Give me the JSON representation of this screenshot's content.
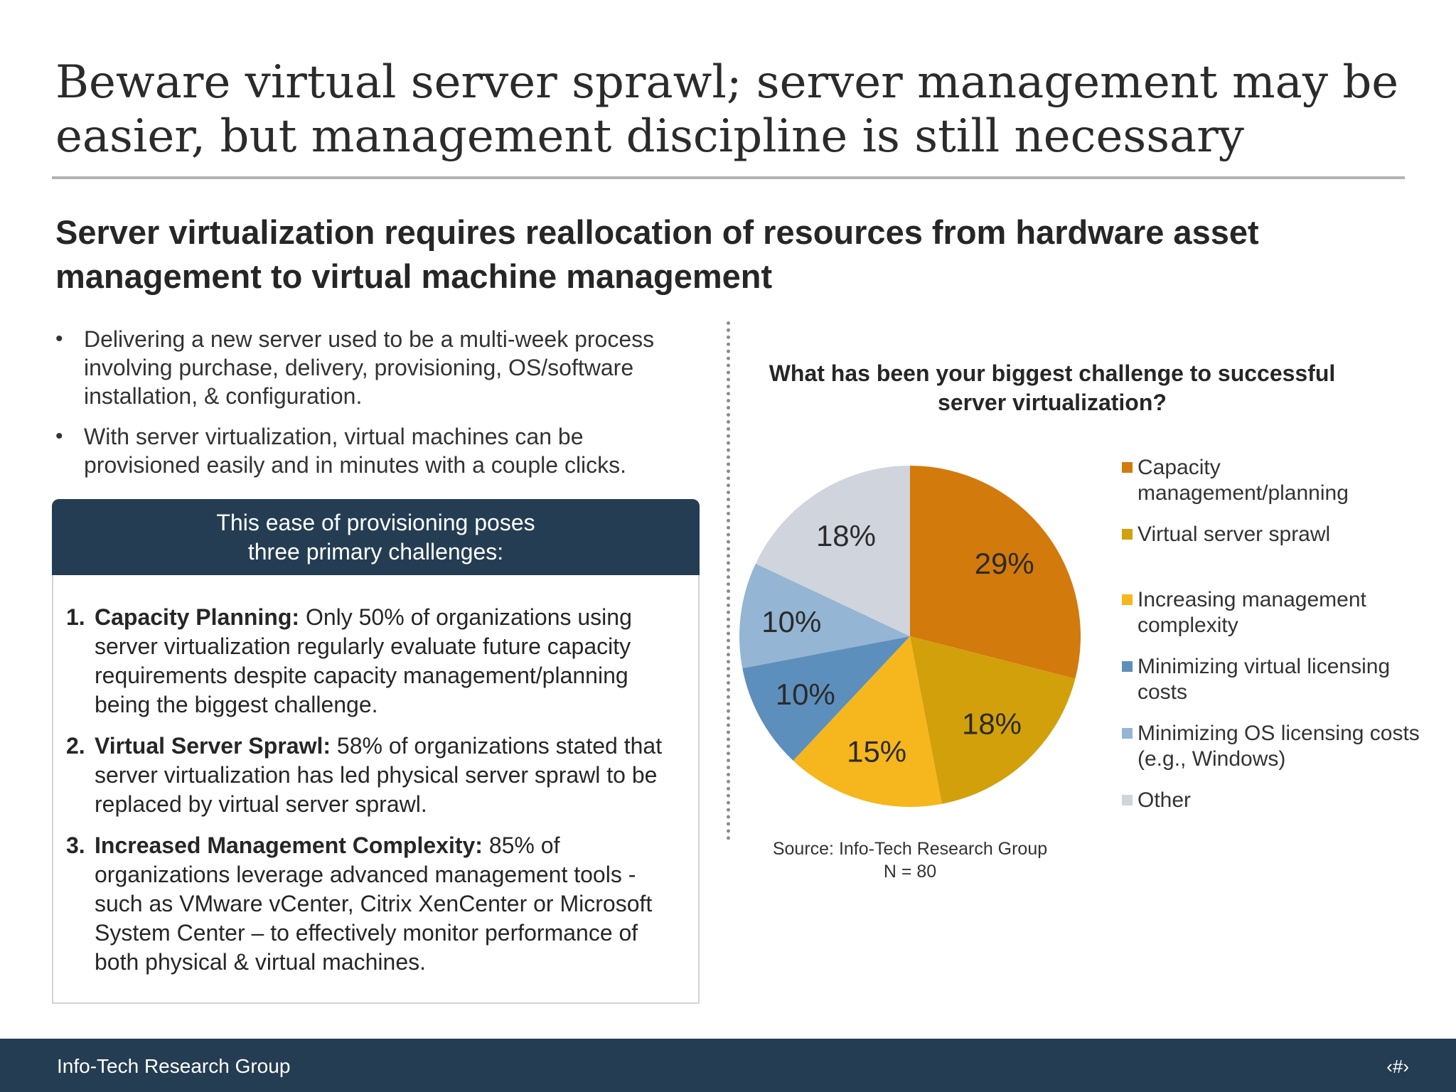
{
  "slide": {
    "title": "Beware virtual server sprawl; server management may be easier, but management discipline is still necessary",
    "subtitle": "Server virtualization requires reallocation of resources from hardware asset management to virtual machine management"
  },
  "bullets": [
    "Delivering a new server used to be a multi-week process involving purchase, delivery, provisioning, OS/software installation, & configuration.",
    "With server virtualization, virtual machines can be provisioned easily and in minutes with a couple clicks."
  ],
  "callout": {
    "header_line1": "This ease of provisioning poses",
    "header_line2": "three primary challenges:",
    "items": [
      {
        "num": "1.",
        "lead": "Capacity Planning:",
        "text": " Only 50% of organizations using server virtualization regularly evaluate future capacity requirements despite capacity management/planning being the biggest challenge."
      },
      {
        "num": "2.",
        "lead": "Virtual Server Sprawl:",
        "text": " 58% of organizations stated that server virtualization has led physical server sprawl to be replaced by virtual server sprawl."
      },
      {
        "num": "3.",
        "lead": "Increased Management Complexity:",
        "text": " 85% of organizations leverage advanced management tools  - such as VMware vCenter, Citrix XenCenter or Microsoft System Center – to effectively monitor performance of both physical & virtual machines."
      }
    ]
  },
  "chart_data": {
    "type": "pie",
    "title": "What has been your biggest challenge to successful server virtualization?",
    "categories": [
      "Capacity management/planning",
      "Virtual server sprawl",
      "Increasing management complexity",
      "Minimizing virtual licensing costs",
      "Minimizing OS licensing costs (e.g., Windows)",
      "Other"
    ],
    "values": [
      29,
      18,
      15,
      10,
      10,
      18
    ],
    "labels": [
      "29%",
      "18%",
      "15%",
      "10%",
      "10%",
      "18%"
    ],
    "colors": [
      "#d37a0c",
      "#d2a00a",
      "#f6b61d",
      "#5d8fbc",
      "#94b5d3",
      "#d0d4dc"
    ],
    "legend_position": "right",
    "source": "Source: Info-Tech Research Group",
    "n": "N = 80"
  },
  "footer": {
    "org": "Info-Tech Research Group",
    "page": "‹#›"
  }
}
